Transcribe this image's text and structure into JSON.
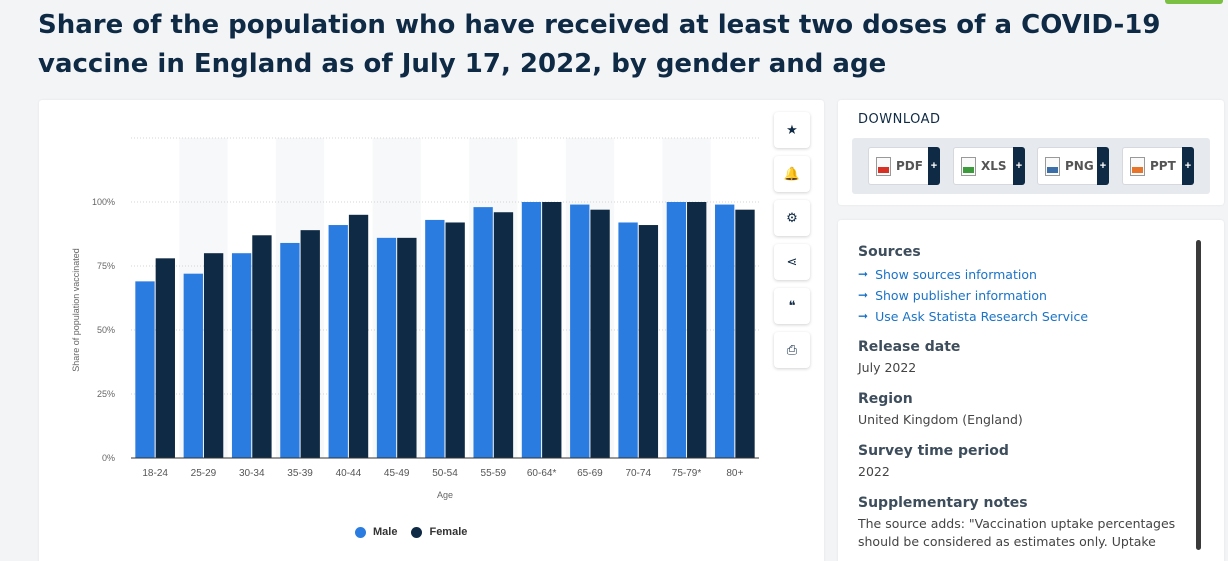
{
  "page": {
    "title": "Share of the population who have received at least two doses of a COVID-19 vaccine in England as of July 17, 2022, by gender and age"
  },
  "tools": [
    {
      "icon": "star-icon",
      "glyph": "★"
    },
    {
      "icon": "bell-icon",
      "glyph": "🔔"
    },
    {
      "icon": "gear-icon",
      "glyph": "⚙"
    },
    {
      "icon": "share-icon",
      "glyph": "⋖"
    },
    {
      "icon": "quote-icon",
      "glyph": "❝"
    },
    {
      "icon": "print-icon",
      "glyph": "⎙"
    }
  ],
  "download": {
    "title": "DOWNLOAD",
    "buttons": [
      {
        "label": "PDF",
        "color": "#d93025"
      },
      {
        "label": "XLS",
        "color": "#3c9a3c"
      },
      {
        "label": "PNG",
        "color": "#3b6ea8"
      },
      {
        "label": "PPT",
        "color": "#e8742b"
      }
    ],
    "plus": "+"
  },
  "info": {
    "sources_head": "Sources",
    "links": [
      "Show sources information",
      "Show publisher information",
      "Use Ask Statista Research Service"
    ],
    "release_head": "Release date",
    "release_val": "July 2022",
    "region_head": "Region",
    "region_val": "United Kingdom (England)",
    "survey_head": "Survey time period",
    "survey_val": "2022",
    "notes_head": "Supplementary notes",
    "notes_val": "The source adds: \"Vaccination uptake percentages should be considered as estimates only. Uptake"
  },
  "chart_data": {
    "type": "bar",
    "categories": [
      "18-24",
      "25-29",
      "30-34",
      "35-39",
      "40-44",
      "45-49",
      "50-54",
      "55-59",
      "60-64*",
      "65-69",
      "70-74",
      "75-79*",
      "80+"
    ],
    "series": [
      {
        "name": "Male",
        "color": "#2b7ce0",
        "values": [
          69,
          72,
          80,
          84,
          91,
          86,
          93,
          98,
          100,
          99,
          92,
          100,
          99
        ]
      },
      {
        "name": "Female",
        "color": "#0f2a44",
        "values": [
          78,
          80,
          87,
          89,
          95,
          86,
          92,
          96,
          100,
          97,
          91,
          100,
          97
        ]
      }
    ],
    "xlabel": "Age",
    "ylabel": "Share of population vaccinated",
    "yticks": [
      "0%",
      "25%",
      "50%",
      "75%",
      "100%"
    ],
    "ylim": [
      0,
      125
    ],
    "grid": true,
    "legend": "bottom"
  }
}
